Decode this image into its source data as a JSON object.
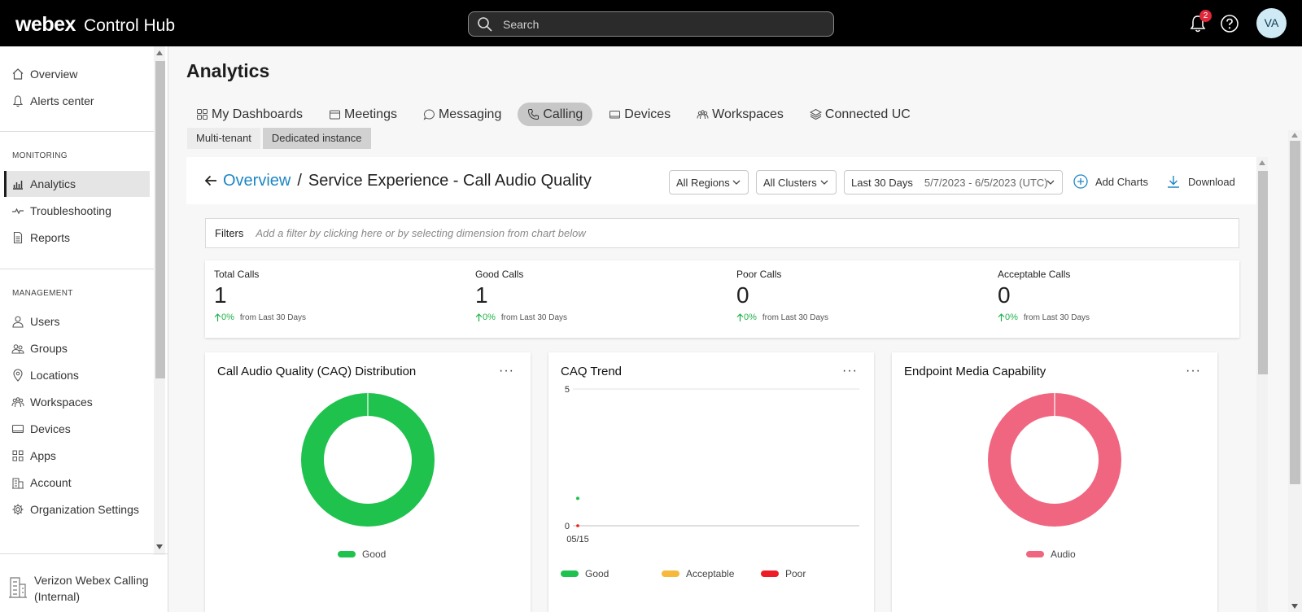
{
  "app": {
    "logo": "webex",
    "product": "Control Hub"
  },
  "search": {
    "placeholder": "Search"
  },
  "notifications": {
    "count": "2"
  },
  "user": {
    "initials": "VA"
  },
  "sidebar": {
    "top_items": [
      {
        "label": "Overview",
        "icon": "home-icon"
      },
      {
        "label": "Alerts center",
        "icon": "bell-icon"
      }
    ],
    "monitoring_label": "MONITORING",
    "monitoring_items": [
      {
        "label": "Analytics",
        "icon": "chart-icon",
        "active": true
      },
      {
        "label": "Troubleshooting",
        "icon": "pulse-icon"
      },
      {
        "label": "Reports",
        "icon": "document-icon"
      }
    ],
    "management_label": "MANAGEMENT",
    "management_items": [
      {
        "label": "Users",
        "icon": "user-icon"
      },
      {
        "label": "Groups",
        "icon": "group-icon"
      },
      {
        "label": "Locations",
        "icon": "location-pin-icon"
      },
      {
        "label": "Workspaces",
        "icon": "workspace-icon"
      },
      {
        "label": "Devices",
        "icon": "device-icon"
      },
      {
        "label": "Apps",
        "icon": "apps-grid-icon"
      },
      {
        "label": "Account",
        "icon": "account-icon"
      },
      {
        "label": "Organization Settings",
        "icon": "gear-icon"
      }
    ],
    "org_name": "Verizon Webex Calling (Internal)"
  },
  "main": {
    "title": "Analytics",
    "tabs": [
      {
        "label": "My Dashboards",
        "icon": "dashboard-icon"
      },
      {
        "label": "Meetings",
        "icon": "meetings-icon"
      },
      {
        "label": "Messaging",
        "icon": "message-icon"
      },
      {
        "label": "Calling",
        "icon": "phone-icon",
        "active": true
      },
      {
        "label": "Devices",
        "icon": "device-icon"
      },
      {
        "label": "Workspaces",
        "icon": "workspace-icon"
      },
      {
        "label": "Connected UC",
        "icon": "layers-icon"
      }
    ],
    "subtabs": [
      {
        "label": "Multi-tenant"
      },
      {
        "label": "Dedicated instance",
        "active": true
      }
    ],
    "breadcrumb": {
      "link": "Overview",
      "separator": "/",
      "current": "Service Experience - Call Audio Quality"
    },
    "dropdowns": {
      "regions": "All Regions",
      "clusters": "All Clusters",
      "range": "Last 30 Days",
      "dates": "5/7/2023 - 6/5/2023 (UTC)"
    },
    "actions": {
      "add_charts": "Add Charts",
      "download": "Download"
    },
    "filters": {
      "label": "Filters",
      "placeholder": "Add a filter by clicking here or by selecting dimension from chart below"
    },
    "stats": [
      {
        "label": "Total Calls",
        "value": "1",
        "change": "0%",
        "from": "from Last 30 Days"
      },
      {
        "label": "Good Calls",
        "value": "1",
        "change": "0%",
        "from": "from Last 30 Days"
      },
      {
        "label": "Poor Calls",
        "value": "0",
        "change": "0%",
        "from": "from Last 30 Days"
      },
      {
        "label": "Acceptable Calls",
        "value": "0",
        "change": "0%",
        "from": "from Last 30 Days"
      }
    ],
    "menu_glyph": "···",
    "colors": {
      "good": "#1fc24d",
      "acceptable": "#f6b93b",
      "poor": "#ee1c25",
      "audio": "#f06680",
      "link": "#1d86c4"
    }
  },
  "chart_data": [
    {
      "type": "pie",
      "title": "Call Audio Quality (CAQ) Distribution",
      "categories": [
        "Good"
      ],
      "values": [
        1
      ],
      "donut": true,
      "legend": "bottom"
    },
    {
      "type": "scatter",
      "title": "CAQ Trend",
      "x": [
        "05/15"
      ],
      "series": [
        {
          "name": "Good",
          "values": [
            1
          ]
        },
        {
          "name": "Acceptable",
          "values": [
            0
          ]
        },
        {
          "name": "Poor",
          "values": [
            0
          ]
        }
      ],
      "ylim": [
        0,
        5
      ],
      "yticks": [
        "0",
        "5"
      ],
      "grid": true,
      "legend": "bottom"
    },
    {
      "type": "pie",
      "title": "Endpoint Media Capability",
      "categories": [
        "Audio"
      ],
      "values": [
        1
      ],
      "donut": true,
      "legend": "bottom"
    }
  ]
}
